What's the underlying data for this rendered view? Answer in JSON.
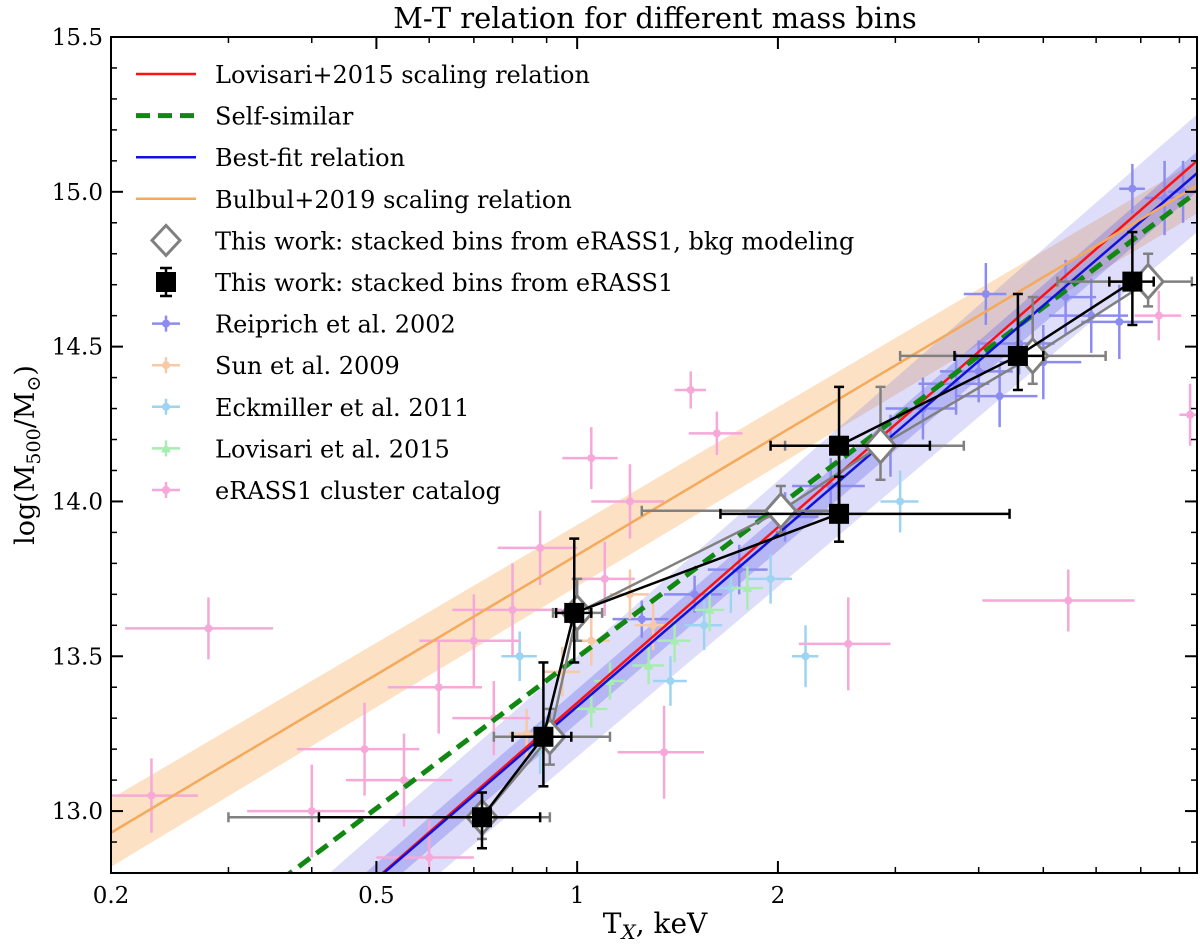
{
  "chart_data": {
    "type": "scatter",
    "title": "M-T relation for different mass bins",
    "xlabel": "T",
    "xlabel_sub": "X",
    "xlabel_unit": ", keV",
    "ylabel_prefix": "log(M",
    "ylabel_sub": "500",
    "ylabel_mid": "/M",
    "ylabel_sub2": "⊙",
    "ylabel_suffix": ")",
    "x_scale": "log",
    "xlim": [
      0.2,
      8.5
    ],
    "ylim": [
      12.8,
      15.5
    ],
    "x_ticks": [
      {
        "v": 0.2,
        "label": "0.2"
      },
      {
        "v": 0.5,
        "label": "0.5"
      },
      {
        "v": 1,
        "label": "1"
      },
      {
        "v": 2,
        "label": "2"
      }
    ],
    "y_ticks": [
      {
        "v": 13.0,
        "label": "13.0"
      },
      {
        "v": 13.5,
        "label": "13.5"
      },
      {
        "v": 14.0,
        "label": "14.0"
      },
      {
        "v": 14.5,
        "label": "14.5"
      },
      {
        "v": 15.0,
        "label": "15.0"
      },
      {
        "v": 15.5,
        "label": "15.5"
      }
    ],
    "legend_position": "top-left",
    "colors": {
      "lovisari_line": "#ff1111",
      "self_similar": "#118811",
      "best_fit": "#1111dd",
      "best_fit_band": "#5a5ae8",
      "bulbul": "#f5a95a",
      "bkg_marker": "#808080",
      "stacked": "#000000",
      "reiprich": "#8c8cf0",
      "sun": "#f8c9a8",
      "eckmiller": "#9ed3f2",
      "lovisari_pts": "#a8ecb0",
      "erass1": "#f6a8d8"
    },
    "relations": [
      {
        "name": "Lovisari+2015 scaling relation",
        "color": "#ff1111",
        "dash": "none",
        "width": 2.5,
        "x": [
          0.4,
          8.5
        ],
        "y": [
          12.6,
          15.1
        ]
      },
      {
        "name": "Self-similar",
        "color": "#118811",
        "dash": "14 8",
        "width": 5,
        "x": [
          0.3,
          8.5
        ],
        "y": [
          12.65,
          15.0
        ]
      },
      {
        "name": "Best-fit relation",
        "color": "#1111dd",
        "dash": "none",
        "width": 2.5,
        "x": [
          0.4,
          8.5
        ],
        "y": [
          12.6,
          15.06
        ]
      },
      {
        "name": "Bulbul+2019 scaling relation",
        "color": "#f5a95a",
        "dash": "none",
        "width": 2.5,
        "x": [
          0.2,
          8.5
        ],
        "y": [
          12.93,
          15.02
        ]
      }
    ],
    "bands": [
      {
        "name": "bulbul-band",
        "color": "#f5a95a",
        "opacity": 0.35,
        "x": [
          0.2,
          8.5
        ],
        "lower": [
          12.82,
          14.93
        ],
        "upper": [
          13.04,
          15.1
        ]
      },
      {
        "name": "best-fit-wide-band",
        "color": "#5a5ae8",
        "opacity": 0.2,
        "x": [
          0.4,
          8.5
        ],
        "lower": [
          12.45,
          14.87
        ],
        "upper": [
          12.75,
          15.25
        ]
      },
      {
        "name": "best-fit-narrow-band",
        "color": "#5a5ae8",
        "opacity": 0.3,
        "x": [
          0.4,
          8.5
        ],
        "lower": [
          12.55,
          15.0
        ],
        "upper": [
          12.65,
          15.13
        ]
      }
    ],
    "series": [
      {
        "name": "This work: stacked bins from eRASS1, bkg modeling",
        "color": "#808080",
        "marker": "diamond",
        "points": [
          {
            "x": 0.72,
            "y": 12.98,
            "xlo": 0.3,
            "xhi": 0.91,
            "ylo": 12.91,
            "yhi": 13.06
          },
          {
            "x": 0.91,
            "y": 13.24,
            "xlo": 0.75,
            "xhi": 1.12,
            "ylo": 13.15,
            "yhi": 13.33
          },
          {
            "x": 1.0,
            "y": 13.64,
            "xlo": 0.92,
            "xhi": 1.09,
            "ylo": 13.55,
            "yhi": 13.75
          },
          {
            "x": 2.02,
            "y": 13.97,
            "xlo": 1.25,
            "xhi": 2.45,
            "ylo": 13.9,
            "yhi": 14.05
          },
          {
            "x": 2.85,
            "y": 14.18,
            "xlo": 2.05,
            "xhi": 3.8,
            "ylo": 14.07,
            "yhi": 14.37
          },
          {
            "x": 4.82,
            "y": 14.47,
            "xlo": 3.05,
            "xhi": 6.2,
            "ylo": 14.38,
            "yhi": 14.66
          },
          {
            "x": 7.18,
            "y": 14.71,
            "xlo": 5.25,
            "xhi": 8.35,
            "ylo": 14.63,
            "yhi": 14.8
          }
        ]
      },
      {
        "name": "This work: stacked bins from eRASS1",
        "color": "#000000",
        "marker": "square",
        "points": [
          {
            "x": 0.72,
            "y": 12.98,
            "xlo": 0.41,
            "xhi": 0.88,
            "ylo": 12.88,
            "yhi": 13.06
          },
          {
            "x": 0.89,
            "y": 13.24,
            "xlo": 0.8,
            "xhi": 0.98,
            "ylo": 13.08,
            "yhi": 13.48
          },
          {
            "x": 0.99,
            "y": 13.64,
            "xlo": 0.93,
            "xhi": 1.05,
            "ylo": 13.48,
            "yhi": 13.88
          },
          {
            "x": 2.47,
            "y": 13.96,
            "xlo": 1.64,
            "xhi": 4.45,
            "ylo": 13.87,
            "yhi": 14.08
          },
          {
            "x": 2.47,
            "y": 14.18,
            "xlo": 1.95,
            "xhi": 3.38,
            "ylo": 13.97,
            "yhi": 14.37
          },
          {
            "x": 4.58,
            "y": 14.47,
            "xlo": 3.68,
            "xhi": 5.0,
            "ylo": 14.36,
            "yhi": 14.67
          },
          {
            "x": 6.8,
            "y": 14.71,
            "xlo": 6.28,
            "xhi": 7.32,
            "ylo": 14.57,
            "yhi": 14.87
          }
        ]
      },
      {
        "name": "Reiprich et al. 2002",
        "color": "#8c8cf0",
        "marker": "circle",
        "points": [
          {
            "x": 1.25,
            "y": 13.62,
            "xe": 0.12,
            "ye": 0.06
          },
          {
            "x": 1.5,
            "y": 13.7,
            "xe": 0.15,
            "ye": 0.06
          },
          {
            "x": 1.75,
            "y": 13.78,
            "xe": 0.18,
            "ye": 0.08
          },
          {
            "x": 2.05,
            "y": 13.95,
            "xe": 0.25,
            "ye": 0.08
          },
          {
            "x": 2.4,
            "y": 14.05,
            "xe": 0.3,
            "ye": 0.09
          },
          {
            "x": 2.95,
            "y": 14.18,
            "xe": 0.35,
            "ye": 0.1
          },
          {
            "x": 3.3,
            "y": 14.3,
            "xe": 0.4,
            "ye": 0.1
          },
          {
            "x": 3.7,
            "y": 14.38,
            "xe": 0.45,
            "ye": 0.1
          },
          {
            "x": 4.0,
            "y": 14.42,
            "xe": 0.5,
            "ye": 0.1
          },
          {
            "x": 4.3,
            "y": 14.34,
            "xe": 0.6,
            "ye": 0.1
          },
          {
            "x": 4.6,
            "y": 14.51,
            "xe": 0.6,
            "ye": 0.1
          },
          {
            "x": 5.0,
            "y": 14.45,
            "xe": 0.7,
            "ye": 0.12
          },
          {
            "x": 5.4,
            "y": 14.66,
            "xe": 0.6,
            "ye": 0.12
          },
          {
            "x": 5.9,
            "y": 14.6,
            "xe": 0.8,
            "ye": 0.12
          },
          {
            "x": 6.5,
            "y": 14.58,
            "xe": 0.8,
            "ye": 0.12
          },
          {
            "x": 7.6,
            "y": 14.98,
            "xe": 0.5,
            "ye": 0.12
          },
          {
            "x": 8.1,
            "y": 15.0,
            "xe": 0.4,
            "ye": 0.1
          },
          {
            "x": 6.8,
            "y": 15.01,
            "xe": 0.3,
            "ye": 0.08
          },
          {
            "x": 4.1,
            "y": 14.67,
            "xe": 0.3,
            "ye": 0.1
          }
        ]
      },
      {
        "name": "Sun et al. 2009",
        "color": "#f8c9a8",
        "marker": "circle",
        "points": [
          {
            "x": 0.84,
            "y": 13.25,
            "xe": 0.05,
            "ye": 0.08
          },
          {
            "x": 0.95,
            "y": 13.45,
            "xe": 0.06,
            "ye": 0.08
          },
          {
            "x": 1.05,
            "y": 13.55,
            "xe": 0.07,
            "ye": 0.08
          },
          {
            "x": 1.2,
            "y": 13.7,
            "xe": 0.08,
            "ye": 0.08
          },
          {
            "x": 1.3,
            "y": 13.6,
            "xe": 0.08,
            "ye": 0.08
          }
        ]
      },
      {
        "name": "Eckmiller et al. 2011",
        "color": "#9ed3f2",
        "marker": "circle",
        "points": [
          {
            "x": 0.82,
            "y": 13.5,
            "xe": 0.05,
            "ye": 0.08
          },
          {
            "x": 0.88,
            "y": 13.2,
            "xe": 0.05,
            "ye": 0.08
          },
          {
            "x": 1.38,
            "y": 13.42,
            "xe": 0.08,
            "ye": 0.08
          },
          {
            "x": 1.55,
            "y": 13.6,
            "xe": 0.1,
            "ye": 0.08
          },
          {
            "x": 1.7,
            "y": 13.72,
            "xe": 0.1,
            "ye": 0.08
          },
          {
            "x": 1.95,
            "y": 13.75,
            "xe": 0.15,
            "ye": 0.08
          },
          {
            "x": 2.2,
            "y": 13.5,
            "xe": 0.1,
            "ye": 0.1
          },
          {
            "x": 3.05,
            "y": 14.0,
            "xe": 0.2,
            "ye": 0.1
          }
        ]
      },
      {
        "name": "Lovisari et al. 2015",
        "color": "#a8ecb0",
        "marker": "triangle",
        "points": [
          {
            "x": 1.05,
            "y": 13.33,
            "xe": 0.06,
            "ye": 0.06
          },
          {
            "x": 1.12,
            "y": 13.42,
            "xe": 0.06,
            "ye": 0.06
          },
          {
            "x": 1.28,
            "y": 13.47,
            "xe": 0.07,
            "ye": 0.06
          },
          {
            "x": 1.4,
            "y": 13.55,
            "xe": 0.08,
            "ye": 0.07
          },
          {
            "x": 1.58,
            "y": 13.65,
            "xe": 0.08,
            "ye": 0.07
          },
          {
            "x": 1.8,
            "y": 13.72,
            "xe": 0.1,
            "ye": 0.07
          }
        ]
      },
      {
        "name": "eRASS1 cluster catalog",
        "color": "#f6a8d8",
        "marker": "circle",
        "points": [
          {
            "x": 0.28,
            "y": 13.59,
            "xe": 0.07,
            "ye": 0.1
          },
          {
            "x": 0.23,
            "y": 13.05,
            "xe": 0.04,
            "ye": 0.12
          },
          {
            "x": 0.4,
            "y": 13.0,
            "xe": 0.08,
            "ye": 0.15
          },
          {
            "x": 0.48,
            "y": 13.2,
            "xe": 0.1,
            "ye": 0.15
          },
          {
            "x": 0.55,
            "y": 13.1,
            "xe": 0.1,
            "ye": 0.15
          },
          {
            "x": 0.62,
            "y": 13.4,
            "xe": 0.1,
            "ye": 0.15
          },
          {
            "x": 0.7,
            "y": 13.55,
            "xe": 0.12,
            "ye": 0.15
          },
          {
            "x": 0.75,
            "y": 13.3,
            "xe": 0.1,
            "ye": 0.12
          },
          {
            "x": 0.8,
            "y": 13.65,
            "xe": 0.15,
            "ye": 0.15
          },
          {
            "x": 0.88,
            "y": 13.85,
            "xe": 0.12,
            "ye": 0.12
          },
          {
            "x": 1.05,
            "y": 14.14,
            "xe": 0.1,
            "ye": 0.1
          },
          {
            "x": 1.1,
            "y": 13.75,
            "xe": 0.12,
            "ye": 0.12
          },
          {
            "x": 1.35,
            "y": 13.19,
            "xe": 0.2,
            "ye": 0.15
          },
          {
            "x": 1.48,
            "y": 14.36,
            "xe": 0.08,
            "ye": 0.06
          },
          {
            "x": 1.62,
            "y": 14.22,
            "xe": 0.15,
            "ye": 0.07
          },
          {
            "x": 2.55,
            "y": 13.54,
            "xe": 0.4,
            "ye": 0.15
          },
          {
            "x": 5.45,
            "y": 13.68,
            "xe": 1.4,
            "ye": 0.1
          },
          {
            "x": 7.45,
            "y": 14.6,
            "xe": 0.6,
            "ye": 0.08
          },
          {
            "x": 8.3,
            "y": 14.28,
            "xe": 0.3,
            "ye": 0.1
          },
          {
            "x": 0.6,
            "y": 12.85,
            "xe": 0.1,
            "ye": 0.12
          },
          {
            "x": 1.2,
            "y": 14.0,
            "xe": 0.15,
            "ye": 0.12
          }
        ]
      }
    ],
    "legend": [
      {
        "label": "Lovisari+2015 scaling relation",
        "kind": "line",
        "color": "#ff1111",
        "dash": "none",
        "width": 2.5
      },
      {
        "label": "Self-similar",
        "kind": "line",
        "color": "#118811",
        "dash": "14 8",
        "width": 5
      },
      {
        "label": "Best-fit relation",
        "kind": "line",
        "color": "#1111dd",
        "dash": "none",
        "width": 2.5
      },
      {
        "label": "Bulbul+2019 scaling relation",
        "kind": "line",
        "color": "#f5a95a",
        "dash": "none",
        "width": 2.5
      },
      {
        "label": "This work: stacked bins from eRASS1, bkg modeling",
        "kind": "diamond",
        "color": "#808080"
      },
      {
        "label": "This work: stacked bins from eRASS1",
        "kind": "square",
        "color": "#000000"
      },
      {
        "label": "Reiprich et al. 2002",
        "kind": "circle",
        "color": "#8c8cf0"
      },
      {
        "label": "Sun et al. 2009",
        "kind": "circle",
        "color": "#f8c9a8"
      },
      {
        "label": "Eckmiller et al. 2011",
        "kind": "circle",
        "color": "#9ed3f2"
      },
      {
        "label": "Lovisari et al. 2015",
        "kind": "triangle",
        "color": "#a8ecb0"
      },
      {
        "label": "eRASS1 cluster catalog",
        "kind": "circle",
        "color": "#f6a8d8"
      }
    ]
  }
}
